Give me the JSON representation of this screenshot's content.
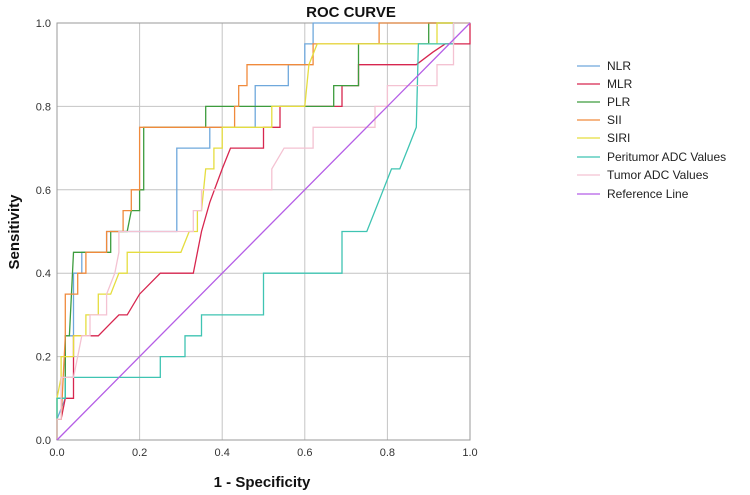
{
  "chart_data": {
    "type": "line",
    "title": "ROC CURVE",
    "xlabel": "1 - Specificity",
    "ylabel": "Sensitivity",
    "xlim": [
      0,
      1
    ],
    "ylim": [
      0,
      1
    ],
    "x_ticks": [
      "0.0",
      "0.2",
      "0.4",
      "0.6",
      "0.8",
      "1.0"
    ],
    "y_ticks": [
      "0.0",
      "0.2",
      "0.4",
      "0.6",
      "0.8",
      "1.0"
    ],
    "grid": true,
    "legend": "right",
    "series": [
      {
        "name": "NLR",
        "color": "#6fa8dc",
        "points": [
          [
            0,
            0
          ],
          [
            0,
            0.05
          ],
          [
            0.02,
            0.1
          ],
          [
            0.02,
            0.25
          ],
          [
            0.04,
            0.25
          ],
          [
            0.04,
            0.4
          ],
          [
            0.06,
            0.4
          ],
          [
            0.06,
            0.45
          ],
          [
            0.12,
            0.45
          ],
          [
            0.12,
            0.5
          ],
          [
            0.29,
            0.5
          ],
          [
            0.29,
            0.7
          ],
          [
            0.37,
            0.7
          ],
          [
            0.37,
            0.75
          ],
          [
            0.48,
            0.75
          ],
          [
            0.48,
            0.85
          ],
          [
            0.56,
            0.85
          ],
          [
            0.56,
            0.9
          ],
          [
            0.6,
            0.9
          ],
          [
            0.6,
            0.95
          ],
          [
            0.62,
            0.95
          ],
          [
            0.62,
            1
          ],
          [
            1,
            1
          ]
        ]
      },
      {
        "name": "MLR",
        "color": "#d7264f",
        "points": [
          [
            0,
            0
          ],
          [
            0,
            0.05
          ],
          [
            0.01,
            0.05
          ],
          [
            0.02,
            0.1
          ],
          [
            0.04,
            0.1
          ],
          [
            0.04,
            0.25
          ],
          [
            0.1,
            0.25
          ],
          [
            0.13,
            0.28
          ],
          [
            0.15,
            0.3
          ],
          [
            0.17,
            0.3
          ],
          [
            0.2,
            0.35
          ],
          [
            0.25,
            0.4
          ],
          [
            0.33,
            0.4
          ],
          [
            0.35,
            0.5
          ],
          [
            0.37,
            0.57
          ],
          [
            0.4,
            0.65
          ],
          [
            0.42,
            0.7
          ],
          [
            0.5,
            0.7
          ],
          [
            0.5,
            0.75
          ],
          [
            0.54,
            0.75
          ],
          [
            0.54,
            0.8
          ],
          [
            0.69,
            0.8
          ],
          [
            0.69,
            0.85
          ],
          [
            0.73,
            0.85
          ],
          [
            0.73,
            0.9
          ],
          [
            0.87,
            0.9
          ],
          [
            0.91,
            0.93
          ],
          [
            0.94,
            0.95
          ],
          [
            1,
            0.95
          ],
          [
            1,
            1
          ]
        ]
      },
      {
        "name": "PLR",
        "color": "#3d9c3d",
        "points": [
          [
            0,
            0
          ],
          [
            0,
            0.1
          ],
          [
            0.02,
            0.1
          ],
          [
            0.02,
            0.25
          ],
          [
            0.03,
            0.25
          ],
          [
            0.04,
            0.45
          ],
          [
            0.13,
            0.45
          ],
          [
            0.13,
            0.5
          ],
          [
            0.17,
            0.5
          ],
          [
            0.18,
            0.55
          ],
          [
            0.2,
            0.55
          ],
          [
            0.2,
            0.6
          ],
          [
            0.21,
            0.6
          ],
          [
            0.21,
            0.75
          ],
          [
            0.36,
            0.75
          ],
          [
            0.36,
            0.8
          ],
          [
            0.67,
            0.8
          ],
          [
            0.67,
            0.85
          ],
          [
            0.73,
            0.85
          ],
          [
            0.73,
            0.95
          ],
          [
            0.9,
            0.95
          ],
          [
            0.9,
            1
          ],
          [
            1,
            1
          ]
        ]
      },
      {
        "name": "SII",
        "color": "#f08a3c",
        "points": [
          [
            0,
            0
          ],
          [
            0,
            0.05
          ],
          [
            0.01,
            0.05
          ],
          [
            0.02,
            0.25
          ],
          [
            0.02,
            0.35
          ],
          [
            0.05,
            0.35
          ],
          [
            0.05,
            0.4
          ],
          [
            0.07,
            0.4
          ],
          [
            0.07,
            0.45
          ],
          [
            0.12,
            0.45
          ],
          [
            0.12,
            0.5
          ],
          [
            0.16,
            0.5
          ],
          [
            0.16,
            0.55
          ],
          [
            0.18,
            0.55
          ],
          [
            0.18,
            0.6
          ],
          [
            0.2,
            0.6
          ],
          [
            0.2,
            0.75
          ],
          [
            0.43,
            0.75
          ],
          [
            0.43,
            0.8
          ],
          [
            0.44,
            0.8
          ],
          [
            0.44,
            0.85
          ],
          [
            0.46,
            0.85
          ],
          [
            0.46,
            0.9
          ],
          [
            0.62,
            0.9
          ],
          [
            0.62,
            0.95
          ],
          [
            0.78,
            0.95
          ],
          [
            0.78,
            1
          ],
          [
            1,
            1
          ]
        ]
      },
      {
        "name": "SIRI",
        "color": "#e5dd3f",
        "points": [
          [
            0,
            0
          ],
          [
            0,
            0.1
          ],
          [
            0.01,
            0.15
          ],
          [
            0.01,
            0.2
          ],
          [
            0.04,
            0.2
          ],
          [
            0.04,
            0.25
          ],
          [
            0.07,
            0.25
          ],
          [
            0.07,
            0.3
          ],
          [
            0.1,
            0.3
          ],
          [
            0.1,
            0.35
          ],
          [
            0.13,
            0.35
          ],
          [
            0.15,
            0.4
          ],
          [
            0.17,
            0.4
          ],
          [
            0.17,
            0.45
          ],
          [
            0.3,
            0.45
          ],
          [
            0.32,
            0.5
          ],
          [
            0.34,
            0.5
          ],
          [
            0.34,
            0.55
          ],
          [
            0.35,
            0.55
          ],
          [
            0.36,
            0.65
          ],
          [
            0.38,
            0.65
          ],
          [
            0.38,
            0.7
          ],
          [
            0.4,
            0.7
          ],
          [
            0.4,
            0.75
          ],
          [
            0.52,
            0.75
          ],
          [
            0.52,
            0.8
          ],
          [
            0.6,
            0.8
          ],
          [
            0.61,
            0.9
          ],
          [
            0.63,
            0.95
          ],
          [
            0.92,
            0.95
          ],
          [
            0.92,
            1
          ],
          [
            1,
            1
          ]
        ]
      },
      {
        "name": "Peritumor ADC Values",
        "color": "#3fc4b2",
        "points": [
          [
            0,
            0
          ],
          [
            0,
            0.1
          ],
          [
            0.02,
            0.1
          ],
          [
            0.02,
            0.15
          ],
          [
            0.25,
            0.15
          ],
          [
            0.25,
            0.2
          ],
          [
            0.31,
            0.2
          ],
          [
            0.31,
            0.25
          ],
          [
            0.35,
            0.25
          ],
          [
            0.35,
            0.3
          ],
          [
            0.5,
            0.3
          ],
          [
            0.5,
            0.4
          ],
          [
            0.69,
            0.4
          ],
          [
            0.69,
            0.5
          ],
          [
            0.75,
            0.5
          ],
          [
            0.79,
            0.6
          ],
          [
            0.81,
            0.65
          ],
          [
            0.83,
            0.65
          ],
          [
            0.85,
            0.7
          ],
          [
            0.87,
            0.75
          ],
          [
            0.875,
            0.95
          ],
          [
            0.96,
            0.95
          ],
          [
            0.96,
            1
          ],
          [
            1,
            1
          ]
        ]
      },
      {
        "name": "Tumor ADC Values",
        "color": "#f4c2d2",
        "points": [
          [
            0,
            0
          ],
          [
            0,
            0.05
          ],
          [
            0.01,
            0.05
          ],
          [
            0.01,
            0.15
          ],
          [
            0.04,
            0.15
          ],
          [
            0.05,
            0.2
          ],
          [
            0.06,
            0.25
          ],
          [
            0.08,
            0.25
          ],
          [
            0.08,
            0.3
          ],
          [
            0.12,
            0.3
          ],
          [
            0.12,
            0.35
          ],
          [
            0.14,
            0.4
          ],
          [
            0.15,
            0.45
          ],
          [
            0.15,
            0.5
          ],
          [
            0.33,
            0.5
          ],
          [
            0.33,
            0.55
          ],
          [
            0.35,
            0.55
          ],
          [
            0.35,
            0.6
          ],
          [
            0.52,
            0.6
          ],
          [
            0.52,
            0.65
          ],
          [
            0.55,
            0.7
          ],
          [
            0.62,
            0.7
          ],
          [
            0.62,
            0.75
          ],
          [
            0.77,
            0.75
          ],
          [
            0.77,
            0.8
          ],
          [
            0.8,
            0.8
          ],
          [
            0.8,
            0.85
          ],
          [
            0.92,
            0.85
          ],
          [
            0.92,
            0.9
          ],
          [
            0.96,
            0.9
          ],
          [
            0.96,
            1
          ],
          [
            1,
            1
          ]
        ]
      },
      {
        "name": "Reference Line",
        "color": "#b55ee6",
        "points": [
          [
            0,
            0
          ],
          [
            1,
            1
          ]
        ]
      }
    ]
  }
}
